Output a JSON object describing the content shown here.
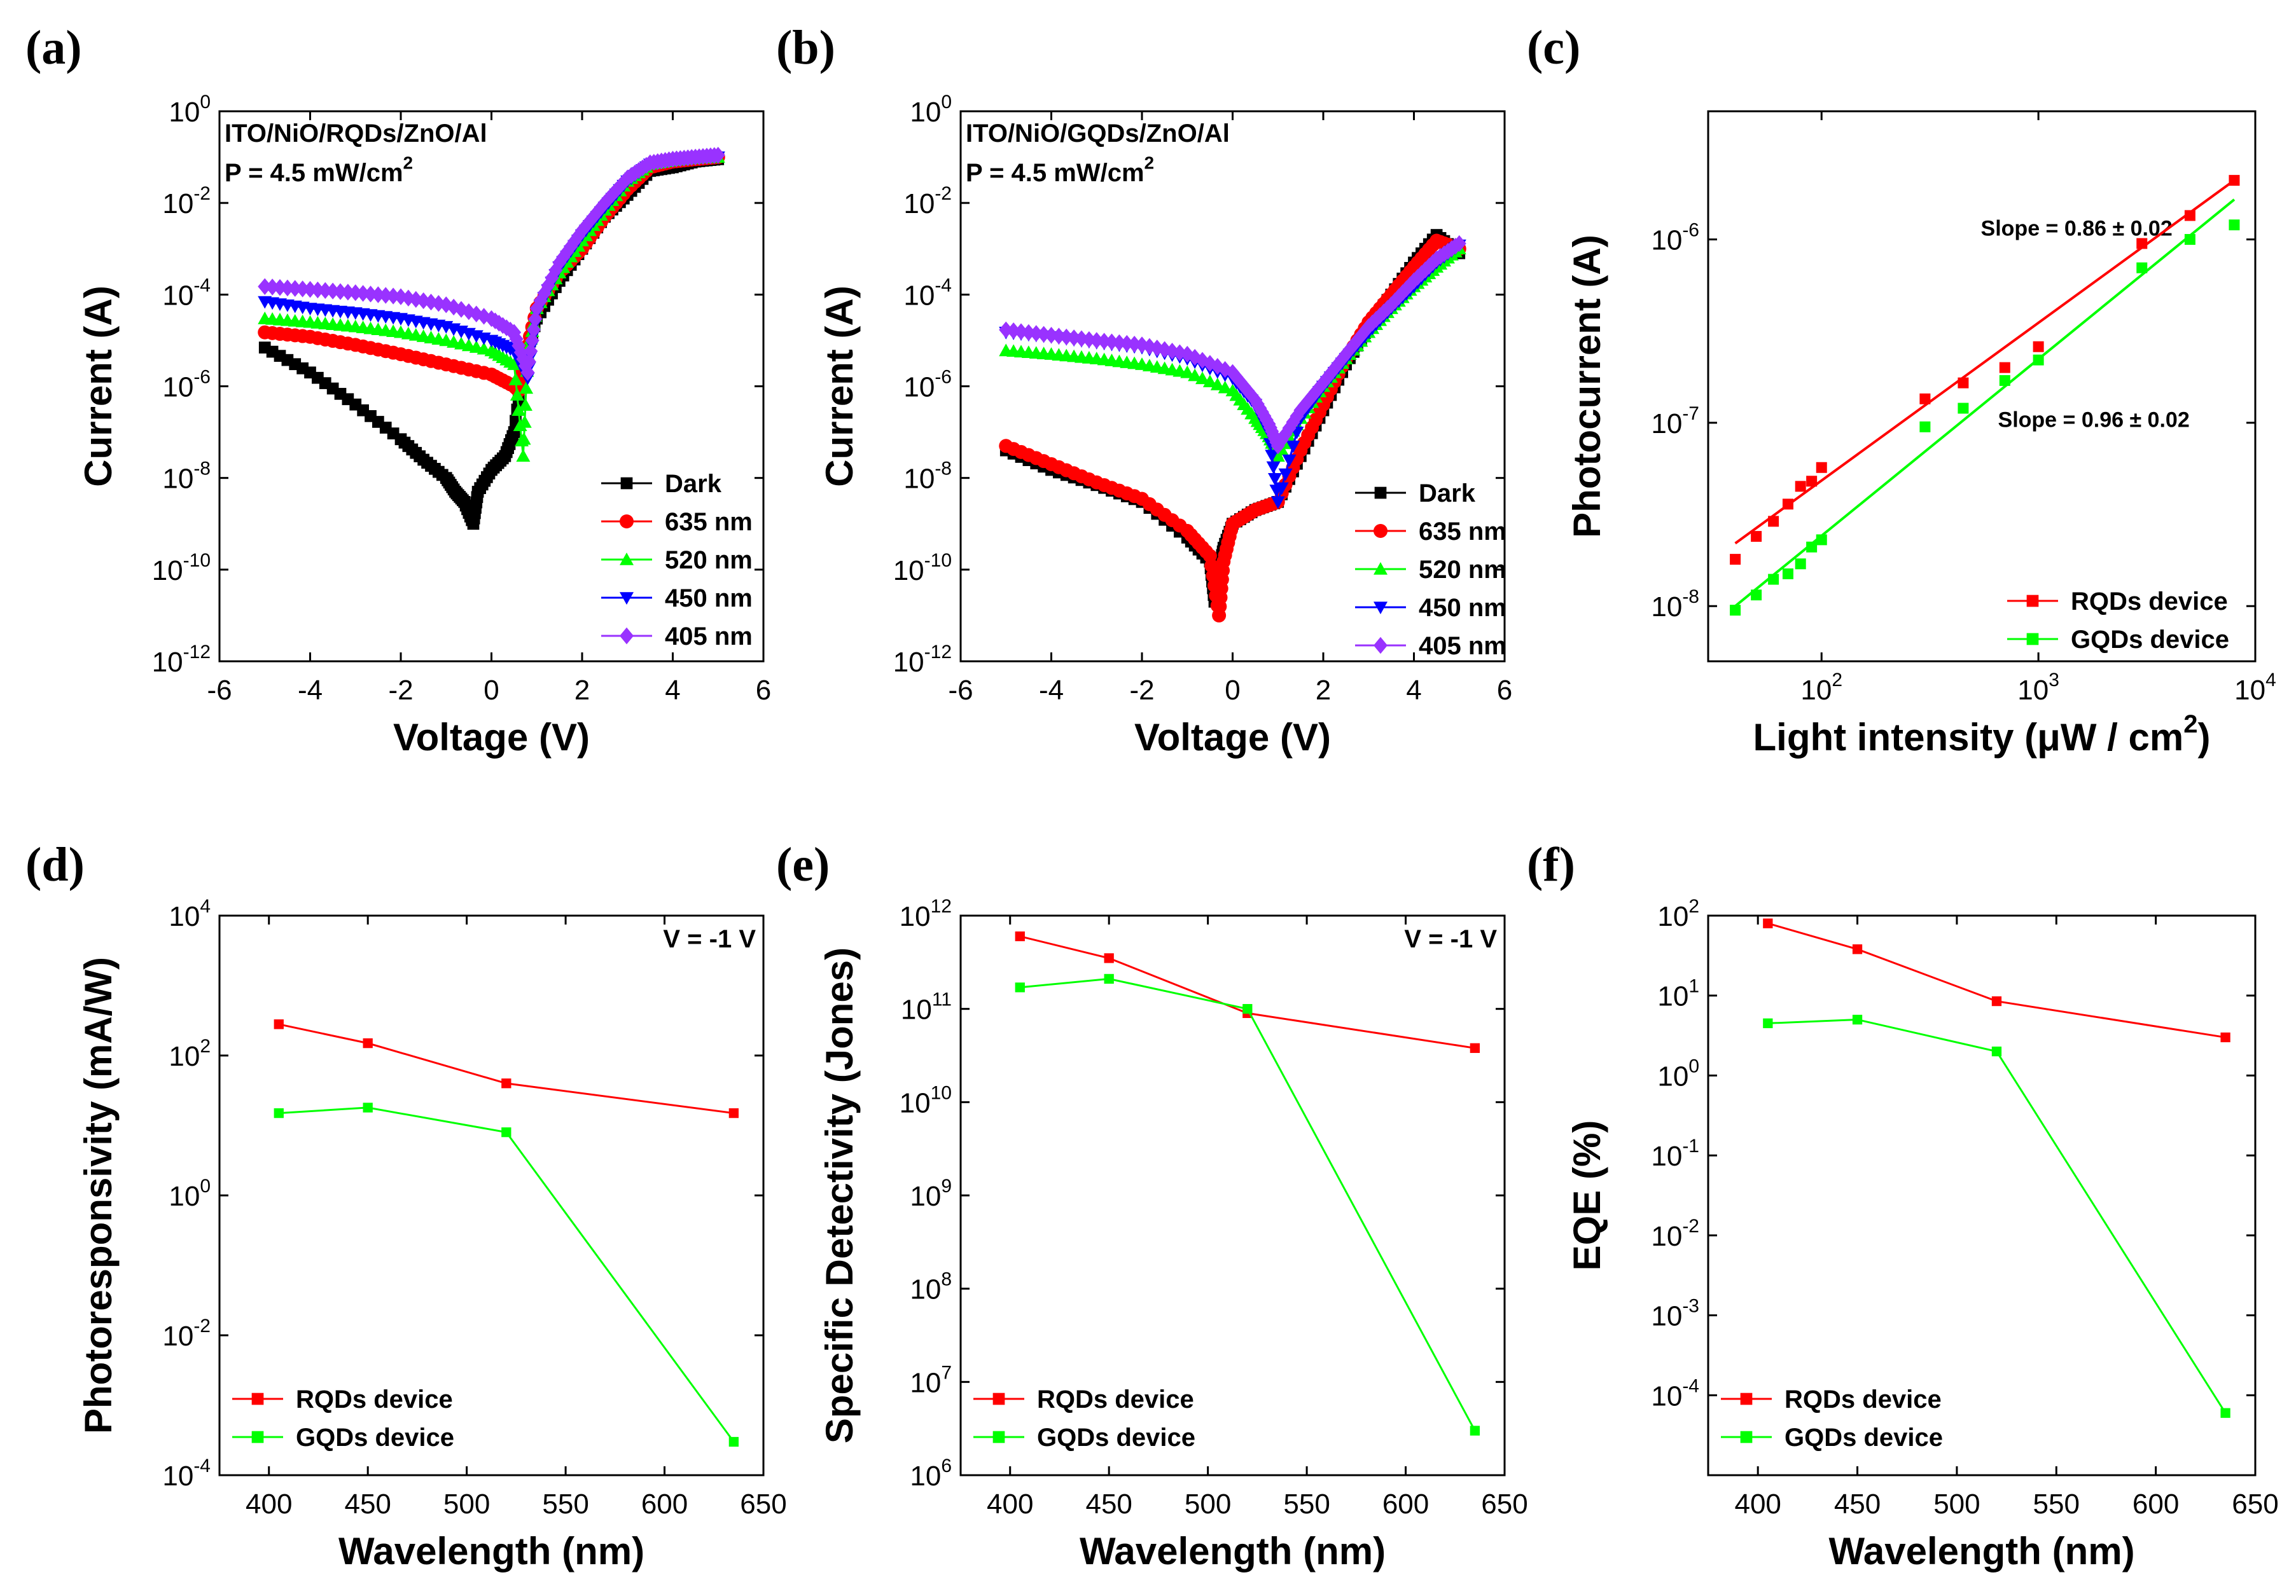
{
  "colors": {
    "dark": "#000000",
    "nm635": "#ff0000",
    "nm520": "#00ff00",
    "nm450": "#0000ff",
    "nm405": "#9932ff",
    "rqds": "#ff0000",
    "gqds": "#00ff00"
  },
  "chart_data": [
    {
      "id": "a",
      "panel_label": "(a)",
      "type": "line",
      "xlabel": "Voltage (V)",
      "ylabel": "Current (A)",
      "yscale": "log",
      "xlim": [
        -6,
        6
      ],
      "ylim": [
        1e-12,
        1
      ],
      "xticks": [
        "-6",
        "-4",
        "-2",
        "0",
        "2",
        "4",
        "6"
      ],
      "yticks": [
        "10^-12",
        "10^-10",
        "10^-8",
        "10^-6",
        "10^-4",
        "10^-2",
        "10^0"
      ],
      "annotations": [
        "ITO/NiO/RQDs/ZnO/Al",
        "P = 4.5 mW/cm^2"
      ],
      "legend": [
        "Dark",
        "635 nm",
        "520 nm",
        "450 nm",
        "405 nm"
      ],
      "series": [
        {
          "name": "Dark",
          "marker": "square",
          "x": [
            -5,
            -4,
            -3,
            -2,
            -1.5,
            -1,
            -0.8,
            -0.6,
            -0.4,
            -0.3,
            0,
            0.3,
            0.5,
            0.7,
            1,
            1.5,
            2,
            2.5,
            3,
            3.5,
            4,
            4.5,
            5
          ],
          "y": [
            7e-06,
            2e-06,
            4e-07,
            7e-08,
            2.5e-08,
            1e-08,
            5e-09,
            3e-09,
            1e-09,
            5e-09,
            1.5e-08,
            3e-08,
            1e-07,
            3e-06,
            3e-05,
            0.0002,
            0.001,
            0.005,
            0.015,
            0.05,
            0.06,
            0.08,
            0.09
          ]
        },
        {
          "name": "635 nm",
          "marker": "circle",
          "x": [
            -5,
            -4,
            -3,
            -2,
            -1,
            0,
            0.5,
            0.6,
            0.7,
            1,
            1.5,
            2,
            2.5,
            3,
            3.5,
            4,
            4.5,
            5
          ],
          "y": [
            1.5e-05,
            1.2e-05,
            8e-06,
            5e-06,
            3e-06,
            1.8e-06,
            1e-06,
            8e-07,
            3e-06,
            5e-05,
            0.0003,
            0.001,
            0.005,
            0.02,
            0.06,
            0.08,
            0.09,
            0.1
          ]
        },
        {
          "name": "520 nm",
          "marker": "triangle-up",
          "x": [
            -5,
            -4,
            -3,
            -2,
            -1,
            0,
            0.5,
            0.7,
            0.8,
            1,
            1.5,
            2,
            2.5,
            3,
            3.5,
            4,
            4.5,
            5
          ],
          "y": [
            3e-05,
            2.5e-05,
            2e-05,
            1.5e-05,
            1e-05,
            6e-06,
            3e-06,
            3e-08,
            5e-06,
            5e-05,
            0.0003,
            0.0015,
            0.007,
            0.03,
            0.07,
            0.085,
            0.095,
            0.1
          ]
        },
        {
          "name": "450 nm",
          "marker": "triangle-down",
          "x": [
            -5,
            -4,
            -3,
            -2,
            -1,
            0,
            0.5,
            0.8,
            1,
            1.5,
            2,
            2.5,
            3,
            3.5,
            4,
            4.5,
            5
          ],
          "y": [
            7e-05,
            5e-05,
            4e-05,
            3e-05,
            2e-05,
            1e-05,
            6e-06,
            1.5e-06,
            4e-05,
            0.0004,
            0.002,
            0.008,
            0.03,
            0.07,
            0.085,
            0.095,
            0.1
          ]
        },
        {
          "name": "405 nm",
          "marker": "diamond",
          "x": [
            -5,
            -4,
            -3,
            -2,
            -1,
            0,
            0.5,
            0.8,
            1,
            1.5,
            2,
            2.5,
            3,
            3.5,
            4,
            4.5,
            5
          ],
          "y": [
            0.00015,
            0.00013,
            0.00011,
            9e-05,
            6e-05,
            3e-05,
            1.5e-05,
            2e-06,
            5e-05,
            0.0005,
            0.0025,
            0.01,
            0.035,
            0.075,
            0.09,
            0.1,
            0.11
          ]
        }
      ]
    },
    {
      "id": "b",
      "panel_label": "(b)",
      "type": "line",
      "xlabel": "Voltage (V)",
      "ylabel": "Current (A)",
      "yscale": "log",
      "xlim": [
        -6,
        6
      ],
      "ylim": [
        1e-12,
        1
      ],
      "xticks": [
        "-6",
        "-4",
        "-2",
        "0",
        "2",
        "4",
        "6"
      ],
      "yticks": [
        "10^-12",
        "10^-10",
        "10^-8",
        "10^-6",
        "10^-4",
        "10^-2",
        "10^0"
      ],
      "annotations": [
        "ITO/NiO/GQDs/ZnO/Al",
        "P = 4.5 mW/cm^2"
      ],
      "legend": [
        "Dark",
        "635 nm",
        "520 nm",
        "450 nm",
        "405 nm"
      ],
      "series": [
        {
          "name": "Dark",
          "marker": "square",
          "x": [
            -5,
            -4,
            -3,
            -2,
            -1,
            -0.5,
            -0.4,
            -0.3,
            -0.2,
            0,
            0.5,
            1,
            1.5,
            2,
            2.5,
            3,
            3.5,
            4,
            4.5,
            5
          ],
          "y": [
            4e-08,
            1.5e-08,
            7e-09,
            3e-09,
            5e-10,
            1.5e-10,
            2e-11,
            1e-10,
            3e-10,
            1e-09,
            2e-09,
            3e-09,
            3e-08,
            3e-07,
            3e-06,
            2e-05,
            0.0001,
            0.0005,
            0.002,
            0.0008
          ]
        },
        {
          "name": "635 nm",
          "marker": "circle",
          "x": [
            -5,
            -4,
            -3,
            -2,
            -1,
            -0.5,
            -0.3,
            -0.2,
            0,
            0.5,
            1,
            1.5,
            2,
            2.5,
            3,
            3.5,
            4,
            4.5,
            5
          ],
          "y": [
            5e-08,
            2e-08,
            8e-09,
            3.5e-09,
            7e-10,
            2e-10,
            1e-11,
            1.5e-10,
            1e-09,
            2e-09,
            3e-09,
            4e-08,
            4e-07,
            4e-06,
            2.5e-05,
            0.0001,
            0.0004,
            0.0015,
            0.001
          ]
        },
        {
          "name": "520 nm",
          "marker": "triangle-up",
          "x": [
            -5,
            -4,
            -3,
            -2,
            -1,
            0,
            0.5,
            0.8,
            1,
            1.5,
            2,
            2.5,
            3,
            3.5,
            4,
            4.5,
            5
          ],
          "y": [
            6e-06,
            5e-06,
            4e-06,
            3e-06,
            2e-06,
            8e-07,
            2e-07,
            8e-08,
            3e-08,
            2e-07,
            1e-06,
            4e-06,
            1.5e-05,
            5e-05,
            0.00015,
            0.0004,
            0.001
          ]
        },
        {
          "name": "450 nm",
          "marker": "triangle-down",
          "x": [
            -5,
            -4,
            -3,
            -2,
            -1,
            0,
            0.5,
            0.8,
            1,
            1.5,
            2,
            2.5,
            3,
            3.5,
            4,
            4.5,
            5
          ],
          "y": [
            1.5e-05,
            1.2e-05,
            9e-06,
            7e-06,
            4e-06,
            1.5e-06,
            4e-07,
            1e-07,
            3e-09,
            2e-07,
            1e-06,
            4e-06,
            1.5e-05,
            5e-05,
            0.00015,
            0.0005,
            0.0012
          ]
        },
        {
          "name": "405 nm",
          "marker": "diamond",
          "x": [
            -5,
            -4,
            -3,
            -2,
            -1,
            0,
            0.5,
            0.8,
            1,
            1.5,
            2,
            2.5,
            3,
            3.5,
            4,
            4.5,
            5
          ],
          "y": [
            1.7e-05,
            1.3e-05,
            1e-05,
            8e-06,
            5e-06,
            2e-06,
            5e-07,
            1.5e-07,
            5e-08,
            3e-07,
            1.2e-06,
            5e-06,
            2e-05,
            6e-05,
            0.0002,
            0.0006,
            0.0013
          ]
        }
      ]
    },
    {
      "id": "c",
      "panel_label": "(c)",
      "type": "scatter",
      "xlabel": "Light intensity (μW / cm^2)",
      "ylabel": "Photocurrent (A)",
      "xscale": "log",
      "yscale": "log",
      "xlim": [
        30,
        10000
      ],
      "ylim": [
        5e-09,
        5e-06
      ],
      "xticks": [
        "10^2",
        "10^3",
        "10^4"
      ],
      "yticks": [
        "10^-8",
        "10^-7",
        "10^-6"
      ],
      "annotations": [
        "Slope = 0.86 ± 0.02",
        "Slope = 0.96 ± 0.02"
      ],
      "legend": [
        "RQDs device",
        "GQDs device"
      ],
      "series": [
        {
          "name": "RQDs device",
          "x": [
            40,
            50,
            60,
            70,
            80,
            90,
            100,
            300,
            450,
            700,
            1000,
            3000,
            5000,
            8000
          ],
          "y": [
            1.8e-08,
            2.4e-08,
            2.9e-08,
            3.6e-08,
            4.5e-08,
            4.8e-08,
            5.7e-08,
            1.35e-07,
            1.65e-07,
            2e-07,
            2.6e-07,
            9.5e-07,
            1.35e-06,
            2.1e-06
          ],
          "fit": {
            "x": [
              40,
              8000
            ],
            "y": [
              2.2e-08,
              2.1e-06
            ]
          }
        },
        {
          "name": "GQDs device",
          "x": [
            40,
            50,
            60,
            70,
            80,
            90,
            100,
            300,
            450,
            700,
            1000,
            3000,
            5000,
            8000
          ],
          "y": [
            9.5e-09,
            1.15e-08,
            1.4e-08,
            1.5e-08,
            1.7e-08,
            2.1e-08,
            2.3e-08,
            9.5e-08,
            1.2e-07,
            1.7e-07,
            2.2e-07,
            7e-07,
            1e-06,
            1.2e-06
          ],
          "fit": {
            "x": [
              40,
              8000
            ],
            "y": [
              1e-08,
              1.65e-06
            ]
          }
        }
      ]
    },
    {
      "id": "d",
      "panel_label": "(d)",
      "type": "line",
      "xlabel": "Wavelength (nm)",
      "ylabel": "Photoresponsivity (mA/W)",
      "yscale": "log",
      "xlim": [
        375,
        650
      ],
      "ylim": [
        0.0001,
        10000.0
      ],
      "xticks": [
        "400",
        "450",
        "500",
        "550",
        "600",
        "650"
      ],
      "yticks": [
        "10^-4",
        "10^-2",
        "10^0",
        "10^2",
        "10^4"
      ],
      "annotations": [
        "V = -1 V"
      ],
      "legend": [
        "RQDs device",
        "GQDs device"
      ],
      "series": [
        {
          "name": "RQDs device",
          "x": [
            405,
            450,
            520,
            635
          ],
          "y": [
            280,
            150,
            40,
            15
          ]
        },
        {
          "name": "GQDs device",
          "x": [
            405,
            450,
            520,
            635
          ],
          "y": [
            15,
            18,
            8,
            0.0003
          ]
        }
      ]
    },
    {
      "id": "e",
      "panel_label": "(e)",
      "type": "line",
      "xlabel": "Wavelength (nm)",
      "ylabel": "Specific Detectivity (Jones)",
      "yscale": "log",
      "xlim": [
        375,
        650
      ],
      "ylim": [
        1000000.0,
        1000000000000.0
      ],
      "xticks": [
        "400",
        "450",
        "500",
        "550",
        "600",
        "650"
      ],
      "yticks": [
        "10^6",
        "10^7",
        "10^8",
        "10^9",
        "10^10",
        "10^11",
        "10^12"
      ],
      "annotations": [
        "V = -1 V"
      ],
      "legend": [
        "RQDs device",
        "GQDs device"
      ],
      "series": [
        {
          "name": "RQDs device",
          "x": [
            405,
            450,
            520,
            635
          ],
          "y": [
            600000000000.0,
            350000000000.0,
            90000000000.0,
            38000000000.0
          ]
        },
        {
          "name": "GQDs device",
          "x": [
            405,
            450,
            520,
            635
          ],
          "y": [
            170000000000.0,
            210000000000.0,
            100000000000.0,
            3000000.0
          ]
        }
      ]
    },
    {
      "id": "f",
      "panel_label": "(f)",
      "type": "line",
      "xlabel": "Wavelength (nm)",
      "ylabel": "EQE (%)",
      "yscale": "log",
      "xlim": [
        375,
        650
      ],
      "ylim": [
        1e-05,
        100
      ],
      "xticks": [
        "400",
        "450",
        "500",
        "550",
        "600",
        "650"
      ],
      "yticks": [
        "10^-4",
        "10^-3",
        "10^-2",
        "10^-1",
        "10^0",
        "10^1",
        "10^2"
      ],
      "legend": [
        "RQDs device",
        "GQDs device"
      ],
      "series": [
        {
          "name": "RQDs device",
          "x": [
            405,
            450,
            520,
            635
          ],
          "y": [
            80,
            38,
            8.5,
            3
          ]
        },
        {
          "name": "GQDs device",
          "x": [
            405,
            450,
            520,
            635
          ],
          "y": [
            4.5,
            5,
            2,
            6e-05
          ]
        }
      ]
    }
  ]
}
